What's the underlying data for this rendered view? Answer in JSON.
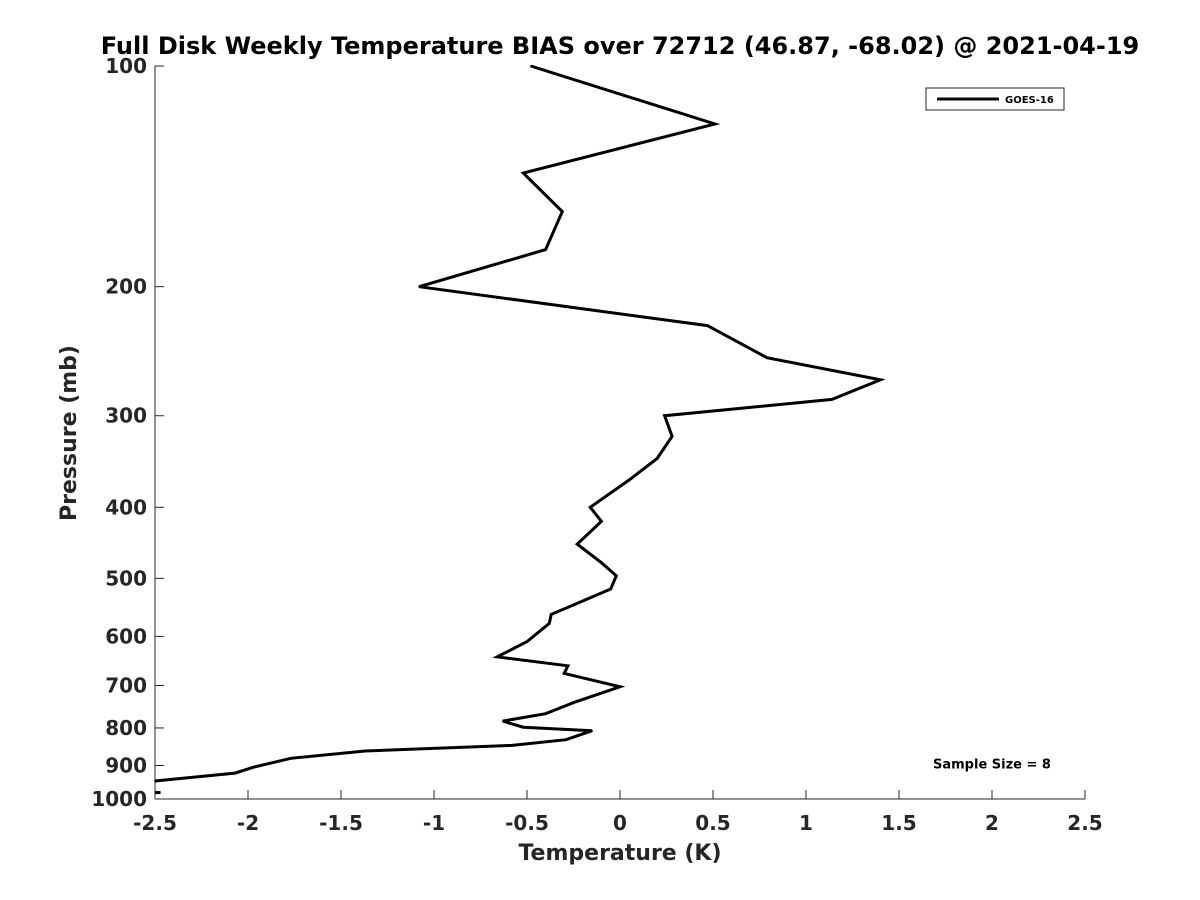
{
  "chart_data": {
    "type": "line",
    "title": "Full Disk Weekly Temperature BIAS over 72712 (46.87, -68.02) @ 2021-04-19",
    "xlabel": "Temperature (K)",
    "ylabel": "Pressure (mb)",
    "xlim": [
      -2.5,
      2.5
    ],
    "ylim": [
      100,
      1000
    ],
    "y_scale": "log",
    "y_reversed": true,
    "xticks": [
      -2.5,
      -2,
      -1.5,
      -1,
      -0.5,
      0,
      0.5,
      1,
      1.5,
      2,
      2.5
    ],
    "xtick_labels": [
      "-2.5",
      "-2",
      "-1.5",
      "-1",
      "-0.5",
      "0",
      "0.5",
      "1",
      "1.5",
      "2",
      "2.5"
    ],
    "yticks": [
      100,
      200,
      300,
      400,
      500,
      600,
      700,
      800,
      900,
      1000
    ],
    "ytick_labels": [
      "100",
      "200",
      "300",
      "400",
      "500",
      "600",
      "700",
      "800",
      "900",
      "1000"
    ],
    "grid": false,
    "legend_position": "top-right",
    "series": [
      {
        "name": "GOES-16",
        "color": "#000000",
        "points": [
          [
            -0.48,
            100
          ],
          [
            0.51,
            120
          ],
          [
            -0.52,
            140
          ],
          [
            -0.31,
            158
          ],
          [
            -0.4,
            178
          ],
          [
            -1.08,
            200
          ],
          [
            0.47,
            226
          ],
          [
            0.79,
            250
          ],
          [
            1.4,
            268
          ],
          [
            1.14,
            285
          ],
          [
            0.24,
            300
          ],
          [
            0.28,
            320
          ],
          [
            0.2,
            343
          ],
          [
            0.05,
            367
          ],
          [
            -0.16,
            400
          ],
          [
            -0.1,
            418
          ],
          [
            -0.23,
            449
          ],
          [
            -0.1,
            476
          ],
          [
            -0.02,
            496
          ],
          [
            -0.05,
            517
          ],
          [
            -0.26,
            545
          ],
          [
            -0.37,
            560
          ],
          [
            -0.38,
            576
          ],
          [
            -0.5,
            610
          ],
          [
            -0.66,
            640
          ],
          [
            -0.28,
            658
          ],
          [
            -0.3,
            674
          ],
          [
            0.0,
            703
          ],
          [
            -0.24,
            737
          ],
          [
            -0.4,
            765
          ],
          [
            -0.63,
            783
          ],
          [
            -0.52,
            798
          ],
          [
            -0.15,
            807
          ],
          [
            -0.29,
            830
          ],
          [
            -0.58,
            845
          ],
          [
            -1.37,
            860
          ],
          [
            -1.77,
            880
          ],
          [
            -1.97,
            905
          ],
          [
            -2.07,
            922
          ],
          [
            -2.5,
            945
          ]
        ]
      }
    ],
    "annotations": [
      {
        "text": "Sample Size = 8",
        "x": 2.0,
        "y": 908
      }
    ]
  }
}
